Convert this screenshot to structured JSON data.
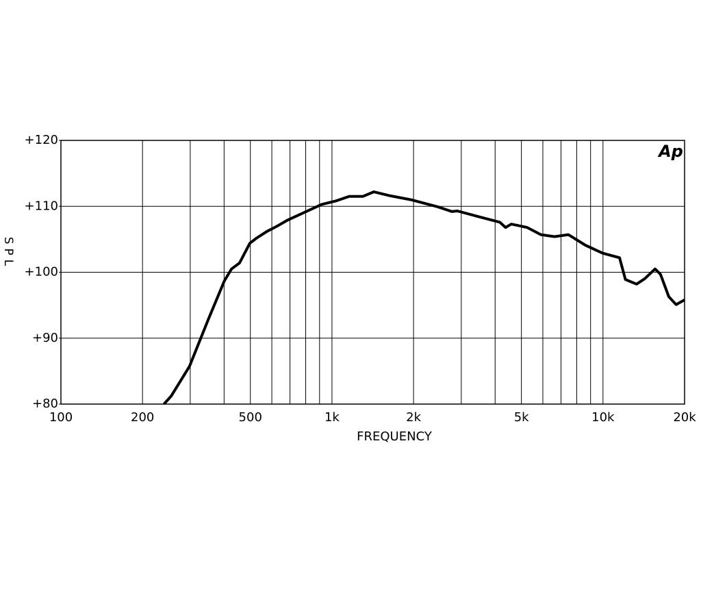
{
  "chart_data": {
    "type": "line",
    "logo": "Ap",
    "xlabel": "FREQUENCY",
    "ylabel": "SPL",
    "xscale": "log",
    "xlim": [
      100,
      20000
    ],
    "ylim": [
      80,
      120
    ],
    "xticks": [
      100,
      200,
      500,
      {
        "value": 1000,
        "label": "1k"
      },
      {
        "value": 2000,
        "label": "2k"
      },
      {
        "value": 5000,
        "label": "5k"
      },
      {
        "value": 10000,
        "label": "10k"
      },
      {
        "value": 20000,
        "label": "20k"
      }
    ],
    "xgrid": [
      200,
      300,
      400,
      500,
      600,
      700,
      800,
      900,
      1000,
      2000,
      3000,
      4000,
      5000,
      6000,
      7000,
      8000,
      9000,
      10000
    ],
    "yticks": [
      {
        "value": 80,
        "label": "+80"
      },
      {
        "value": 90,
        "label": "+90"
      },
      {
        "value": 100,
        "label": "+100"
      },
      {
        "value": 110,
        "label": "+110"
      },
      {
        "value": 120,
        "label": "+120"
      }
    ],
    "grid": true,
    "x": [
      240,
      255,
      298,
      351,
      401,
      426,
      456,
      498,
      528,
      576,
      628,
      685,
      793,
      917,
      1030,
      1157,
      1300,
      1427,
      1641,
      1954,
      2466,
      2770,
      2900,
      3492,
      4159,
      4370,
      4590,
      5248,
      5900,
      6625,
      7450,
      8610,
      9960,
      11510,
      12100,
      13300,
      14250,
      15570,
      16300,
      17490,
      18610,
      20000
    ],
    "series": [
      {
        "color": "#000000",
        "values": [
          80,
          81.2,
          85.7,
          93,
          98.7,
          100.5,
          101.4,
          104.4,
          105.2,
          106.2,
          107,
          107.9,
          109.1,
          110.3,
          110.8,
          111.5,
          111.5,
          112.2,
          111.6,
          111,
          109.9,
          109.2,
          109.3,
          108.4,
          107.6,
          106.8,
          107.3,
          106.8,
          105.7,
          105.4,
          105.7,
          104.1,
          102.9,
          102.2,
          98.9,
          98.2,
          99,
          100.5,
          99.7,
          96.3,
          95.1,
          95.8
        ]
      }
    ]
  }
}
